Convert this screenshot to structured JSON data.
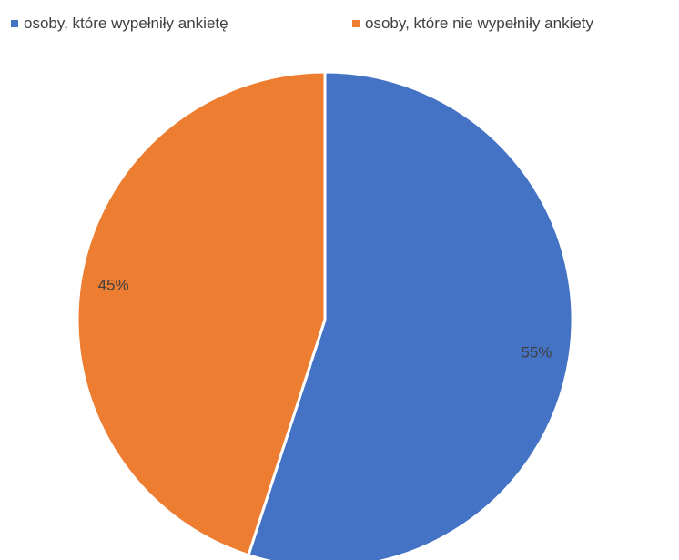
{
  "chart_data": {
    "type": "pie",
    "labels": [
      "osoby, które wypełniły ankietę",
      "osoby, które  nie wypełniły ankiety"
    ],
    "values": [
      55,
      45
    ],
    "data_labels": [
      "55%",
      "45%"
    ],
    "colors": [
      "#4472C4",
      "#ED7D31"
    ],
    "legend_position": "top",
    "start_angle": "12 o'clock",
    "direction": "clockwise"
  }
}
